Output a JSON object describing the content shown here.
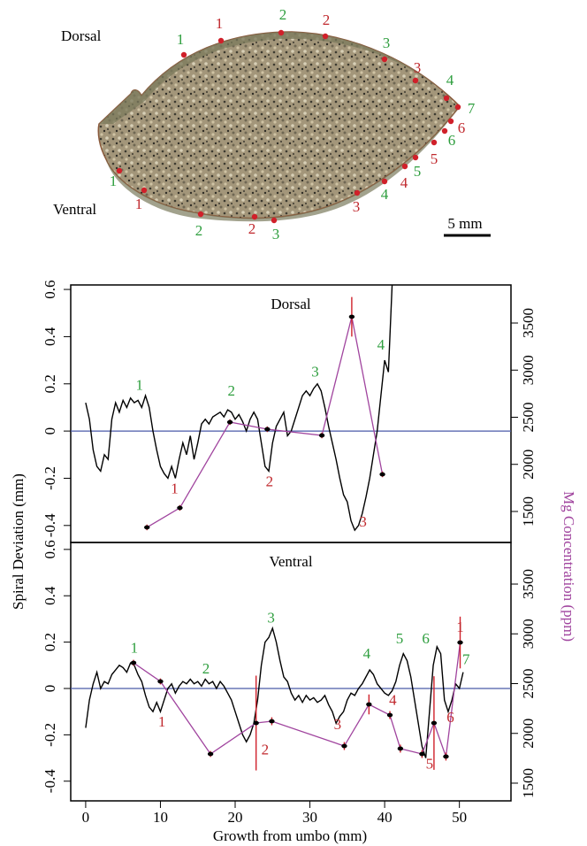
{
  "photo": {
    "dorsal_label": "Dorsal",
    "ventral_label": "Ventral",
    "scale_label": "5 mm",
    "markers": [
      {
        "label": "1",
        "color": "#2e9e3e"
      },
      {
        "label": "1",
        "color": "#c0282d"
      },
      {
        "label": "2",
        "color": "#2e9e3e"
      },
      {
        "label": "2",
        "color": "#c0282d"
      },
      {
        "label": "3",
        "color": "#2e9e3e"
      },
      {
        "label": "3",
        "color": "#c0282d"
      },
      {
        "label": "4",
        "color": "#2e9e3e"
      },
      {
        "label": "7",
        "color": "#2e9e3e"
      },
      {
        "label": "6",
        "color": "#c0282d"
      },
      {
        "label": "6",
        "color": "#2e9e3e"
      },
      {
        "label": "5",
        "color": "#c0282d"
      },
      {
        "label": "5",
        "color": "#2e9e3e"
      },
      {
        "label": "4",
        "color": "#c0282d"
      },
      {
        "label": "4",
        "color": "#2e9e3e"
      },
      {
        "label": "3",
        "color": "#c0282d"
      },
      {
        "label": "3",
        "color": "#2e9e3e"
      },
      {
        "label": "2",
        "color": "#c0282d"
      },
      {
        "label": "2",
        "color": "#2e9e3e"
      },
      {
        "label": "1",
        "color": "#c0282d"
      },
      {
        "label": "1",
        "color": "#2e9e3e"
      }
    ]
  },
  "axes": {
    "xlabel": "Growth from umbo (mm)",
    "ylabel": "Spiral Deviation (mm)",
    "y2label": "Mg Concentration (ppm)",
    "y2label_color": "#a0449e",
    "xlim": [
      -2.0,
      56.9
    ],
    "xticks": [
      0,
      10,
      20,
      30,
      40,
      50
    ]
  },
  "chart_data": [
    {
      "type": "line",
      "title": "Dorsal",
      "ylim": [
        -0.472,
        0.619
      ],
      "yticks": [
        -0.4,
        -0.2,
        0,
        0.2,
        0.4,
        0.6
      ],
      "y2lim": [
        1171,
        3904
      ],
      "y2ticks": [
        1500,
        2000,
        2500,
        3000,
        3500
      ],
      "zero_line_color": "#4a5aa8",
      "series": [
        {
          "color": "#000000",
          "x": [
            0,
            0.5,
            1,
            1.5,
            2,
            2.5,
            3,
            3.5,
            4,
            4.5,
            5,
            5.5,
            6,
            6.5,
            7,
            7.5,
            8,
            8.5,
            9,
            9.5,
            10,
            10.5,
            11,
            11.5,
            12,
            12.5,
            13,
            13.5,
            14,
            14.5,
            15,
            15.5,
            16,
            16.5,
            17,
            17.5,
            18,
            18.5,
            19,
            19.5,
            20,
            20.5,
            21,
            21.5,
            22,
            22.5,
            23,
            23.5,
            24,
            24.5,
            25,
            25.5,
            26,
            26.5,
            27,
            27.5,
            28,
            28.5,
            29,
            29.5,
            30,
            30.5,
            31,
            31.5,
            32,
            32.5,
            33,
            33.5,
            34,
            34.5,
            35,
            35.5,
            36,
            36.5,
            37,
            37.5,
            38,
            38.5,
            39,
            39.5,
            40,
            40.5,
            41
          ],
          "values": [
            0.12,
            0.05,
            -0.08,
            -0.15,
            -0.17,
            -0.1,
            -0.12,
            0.05,
            0.12,
            0.08,
            0.13,
            0.1,
            0.14,
            0.12,
            0.13,
            0.1,
            0.15,
            0.1,
            0.0,
            -0.08,
            -0.15,
            -0.18,
            -0.2,
            -0.15,
            -0.2,
            -0.12,
            -0.05,
            -0.1,
            -0.02,
            -0.12,
            -0.05,
            0.03,
            0.05,
            0.03,
            0.06,
            0.07,
            0.08,
            0.06,
            0.09,
            0.08,
            0.05,
            0.07,
            0.04,
            0.0,
            0.05,
            0.08,
            0.05,
            -0.05,
            -0.15,
            -0.17,
            -0.05,
            0.02,
            0.05,
            0.08,
            -0.02,
            0.0,
            0.05,
            0.1,
            0.15,
            0.17,
            0.15,
            0.18,
            0.2,
            0.17,
            0.1,
            0.02,
            -0.05,
            -0.12,
            -0.2,
            -0.27,
            -0.3,
            -0.38,
            -0.42,
            -0.4,
            -0.35,
            -0.28,
            -0.2,
            -0.1,
            0.0,
            0.15,
            0.3,
            0.25,
            0.62
          ]
        },
        {
          "color": "#a0449e",
          "axis": "y2",
          "marker_color": "#000000",
          "error_color": "#d0202a",
          "x": [
            8.2,
            12.6,
            19.3,
            24.3,
            31.6,
            35.6,
            39.7
          ],
          "values": [
            1331,
            1538,
            2448,
            2373,
            2307,
            3566,
            1894
          ],
          "errors": [
            30,
            30,
            30,
            30,
            30,
            210,
            30
          ]
        }
      ],
      "annotations": [
        {
          "text": "1",
          "x": 7.2,
          "y": 0.19,
          "color": "#2e9e3e"
        },
        {
          "text": "2",
          "x": 19.5,
          "y": 0.165,
          "color": "#2e9e3e"
        },
        {
          "text": "3",
          "x": 30.7,
          "y": 0.245,
          "color": "#2e9e3e"
        },
        {
          "text": "4",
          "x": 39.5,
          "y": 0.36,
          "color": "#2e9e3e"
        },
        {
          "text": "1",
          "x": 11.9,
          "y": -0.25,
          "color": "#c0282d"
        },
        {
          "text": "2",
          "x": 24.6,
          "y": -0.22,
          "color": "#c0282d"
        },
        {
          "text": "3",
          "x": 37.1,
          "y": -0.39,
          "color": "#c0282d"
        }
      ]
    },
    {
      "type": "line",
      "title": "Ventral",
      "ylim": [
        -0.485,
        0.63
      ],
      "yticks": [
        -0.4,
        -0.2,
        0,
        0.2,
        0.4,
        0.6
      ],
      "y2lim": [
        1322,
        3918
      ],
      "y2ticks": [
        1500,
        2000,
        2500,
        3000,
        3500
      ],
      "zero_line_color": "#4a5aa8",
      "series": [
        {
          "color": "#000000",
          "x": [
            0,
            0.5,
            1,
            1.5,
            2,
            2.5,
            3,
            3.5,
            4,
            4.5,
            5,
            5.5,
            6,
            6.5,
            7,
            7.5,
            8,
            8.5,
            9,
            9.5,
            10,
            10.5,
            11,
            11.5,
            12,
            12.5,
            13,
            13.5,
            14,
            14.5,
            15,
            15.5,
            16,
            16.5,
            17,
            17.5,
            18,
            18.5,
            19,
            19.5,
            20,
            20.5,
            21,
            21.5,
            22,
            22.5,
            23,
            23.5,
            24,
            24.5,
            25,
            25.5,
            26,
            26.5,
            27,
            27.5,
            28,
            28.5,
            29,
            29.5,
            30,
            30.5,
            31,
            31.5,
            32,
            32.5,
            33,
            33.5,
            34,
            34.5,
            35,
            35.5,
            36,
            36.5,
            37,
            37.5,
            38,
            38.5,
            39,
            39.5,
            40,
            40.5,
            41,
            41.5,
            42,
            42.5,
            43,
            43.5,
            44,
            44.5,
            45,
            45.5,
            46,
            46.5,
            47,
            47.5,
            48,
            48.5,
            49,
            49.5,
            50,
            50.5
          ],
          "values": [
            -0.17,
            -0.05,
            0.02,
            0.07,
            0.0,
            0.03,
            0.02,
            0.06,
            0.08,
            0.1,
            0.09,
            0.07,
            0.11,
            0.1,
            0.06,
            0.03,
            -0.03,
            -0.08,
            -0.1,
            -0.06,
            -0.1,
            -0.05,
            0.0,
            0.02,
            -0.02,
            0.01,
            0.03,
            0.02,
            0.04,
            0.02,
            0.03,
            0.01,
            0.04,
            0.02,
            0.03,
            0.0,
            0.03,
            0.01,
            -0.02,
            -0.05,
            -0.1,
            -0.15,
            -0.2,
            -0.23,
            -0.2,
            -0.15,
            -0.05,
            0.1,
            0.2,
            0.22,
            0.26,
            0.2,
            0.12,
            0.05,
            0.03,
            -0.02,
            -0.05,
            -0.03,
            -0.06,
            -0.03,
            -0.05,
            -0.04,
            -0.06,
            -0.05,
            -0.03,
            -0.07,
            -0.1,
            -0.15,
            -0.12,
            -0.1,
            -0.05,
            -0.02,
            -0.03,
            0.0,
            0.02,
            0.05,
            0.08,
            0.06,
            0.02,
            0.0,
            -0.02,
            -0.03,
            -0.01,
            0.03,
            0.1,
            0.15,
            0.12,
            0.05,
            -0.05,
            -0.15,
            -0.25,
            -0.3,
            -0.1,
            0.1,
            0.18,
            0.15,
            -0.05,
            -0.1,
            -0.05,
            0.02,
            0.0,
            0.07
          ]
        },
        {
          "color": "#a0449e",
          "axis": "y2",
          "marker_color": "#000000",
          "error_color": "#d0202a",
          "x": [
            6.4,
            10.0,
            16.7,
            22.8,
            24.9,
            34.6,
            37.9,
            40.7,
            42.1,
            45.0,
            46.6,
            48.2,
            50.1
          ],
          "values": [
            2709,
            2522,
            1793,
            2104,
            2122,
            1873,
            2291,
            2184,
            1847,
            1793,
            2104,
            1767,
            2913
          ],
          "errors": [
            30,
            30,
            30,
            476,
            40,
            40,
            100,
            40,
            40,
            40,
            470,
            40,
            260
          ]
        }
      ],
      "annotations": [
        {
          "text": "1",
          "x": 6.5,
          "y": 0.17,
          "color": "#2e9e3e"
        },
        {
          "text": "2",
          "x": 16.1,
          "y": 0.08,
          "color": "#2e9e3e"
        },
        {
          "text": "3",
          "x": 24.8,
          "y": 0.3,
          "color": "#2e9e3e"
        },
        {
          "text": "4",
          "x": 37.6,
          "y": 0.145,
          "color": "#2e9e3e"
        },
        {
          "text": "5",
          "x": 42.0,
          "y": 0.21,
          "color": "#2e9e3e"
        },
        {
          "text": "6",
          "x": 45.5,
          "y": 0.21,
          "color": "#2e9e3e"
        },
        {
          "text": "7",
          "x": 50.9,
          "y": 0.12,
          "color": "#2e9e3e"
        },
        {
          "text": "1",
          "x": 10.2,
          "y": -0.15,
          "color": "#c0282d"
        },
        {
          "text": "2",
          "x": 24.0,
          "y": -0.27,
          "color": "#c0282d"
        },
        {
          "text": "3",
          "x": 33.7,
          "y": -0.16,
          "color": "#c0282d"
        },
        {
          "text": "4",
          "x": 41.1,
          "y": -0.055,
          "color": "#c0282d"
        },
        {
          "text": "5",
          "x": 46.0,
          "y": -0.33,
          "color": "#c0282d"
        },
        {
          "text": "6",
          "x": 48.8,
          "y": -0.13,
          "color": "#c0282d"
        },
        {
          "text": "1",
          "x": 50.1,
          "y": 0.26,
          "color": "#c0282d"
        }
      ]
    }
  ]
}
